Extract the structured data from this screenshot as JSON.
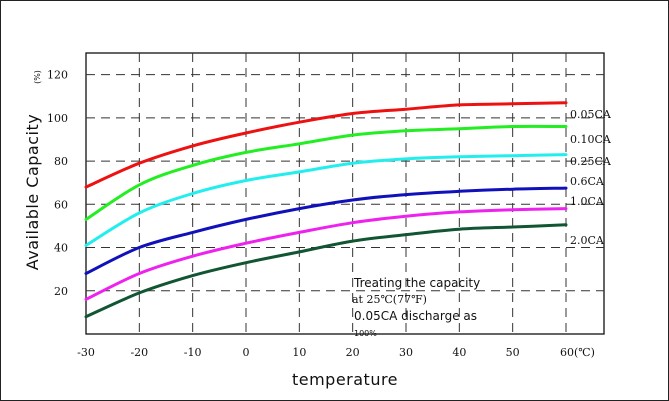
{
  "chart_data": {
    "type": "line",
    "title": "",
    "xlabel": "temperature",
    "ylabel": "Available Capacity",
    "ylabel_unit": "(%)",
    "xlim": [
      -30,
      60
    ],
    "ylim": [
      0,
      130
    ],
    "x_ticks": [
      -30,
      -20,
      -10,
      0,
      10,
      20,
      30,
      40,
      50,
      60
    ],
    "x_tick_labels": [
      "-30",
      "-20",
      "-10",
      "0",
      "10",
      "20",
      "30",
      "40",
      "50",
      "60(℃)"
    ],
    "y_ticks": [
      20,
      40,
      60,
      80,
      100,
      120
    ],
    "y_tick_labels": [
      "20",
      "40",
      "60",
      "80",
      "100",
      "120"
    ],
    "grid": true,
    "grid_style": "dashed",
    "x": [
      -30,
      -20,
      -10,
      0,
      10,
      20,
      30,
      40,
      50,
      60
    ],
    "series": [
      {
        "name": "0.05CA",
        "color": "#ee1111",
        "values": [
          68,
          79,
          87,
          93,
          98,
          102,
          104,
          106,
          106.5,
          107
        ]
      },
      {
        "name": "0.10CA",
        "color": "#22ee22",
        "values": [
          53,
          69,
          78,
          84,
          88,
          92,
          94,
          95,
          96,
          96
        ]
      },
      {
        "name": "0.25CA",
        "color": "#22eeee",
        "values": [
          41,
          56,
          65,
          71,
          75,
          79,
          81,
          82,
          82.5,
          83
        ]
      },
      {
        "name": "0.6CA",
        "color": "#1111bb",
        "values": [
          28,
          40,
          47,
          53,
          58,
          62,
          64.5,
          66,
          67,
          67.5
        ]
      },
      {
        "name": "1.0CA",
        "color": "#ee22ee",
        "values": [
          16,
          28,
          36,
          42,
          47,
          51.5,
          54.5,
          56.5,
          57.5,
          58
        ]
      },
      {
        "name": "2.0CA",
        "color": "#115533",
        "values": [
          8,
          19,
          27,
          33,
          38,
          43,
          46,
          48.5,
          49.5,
          50.5
        ]
      }
    ],
    "annotation": {
      "line1": "Treating the capacity",
      "line2": "at 25℃(77℉)",
      "line3": "0.05CA discharge as",
      "line4": "100%"
    }
  }
}
